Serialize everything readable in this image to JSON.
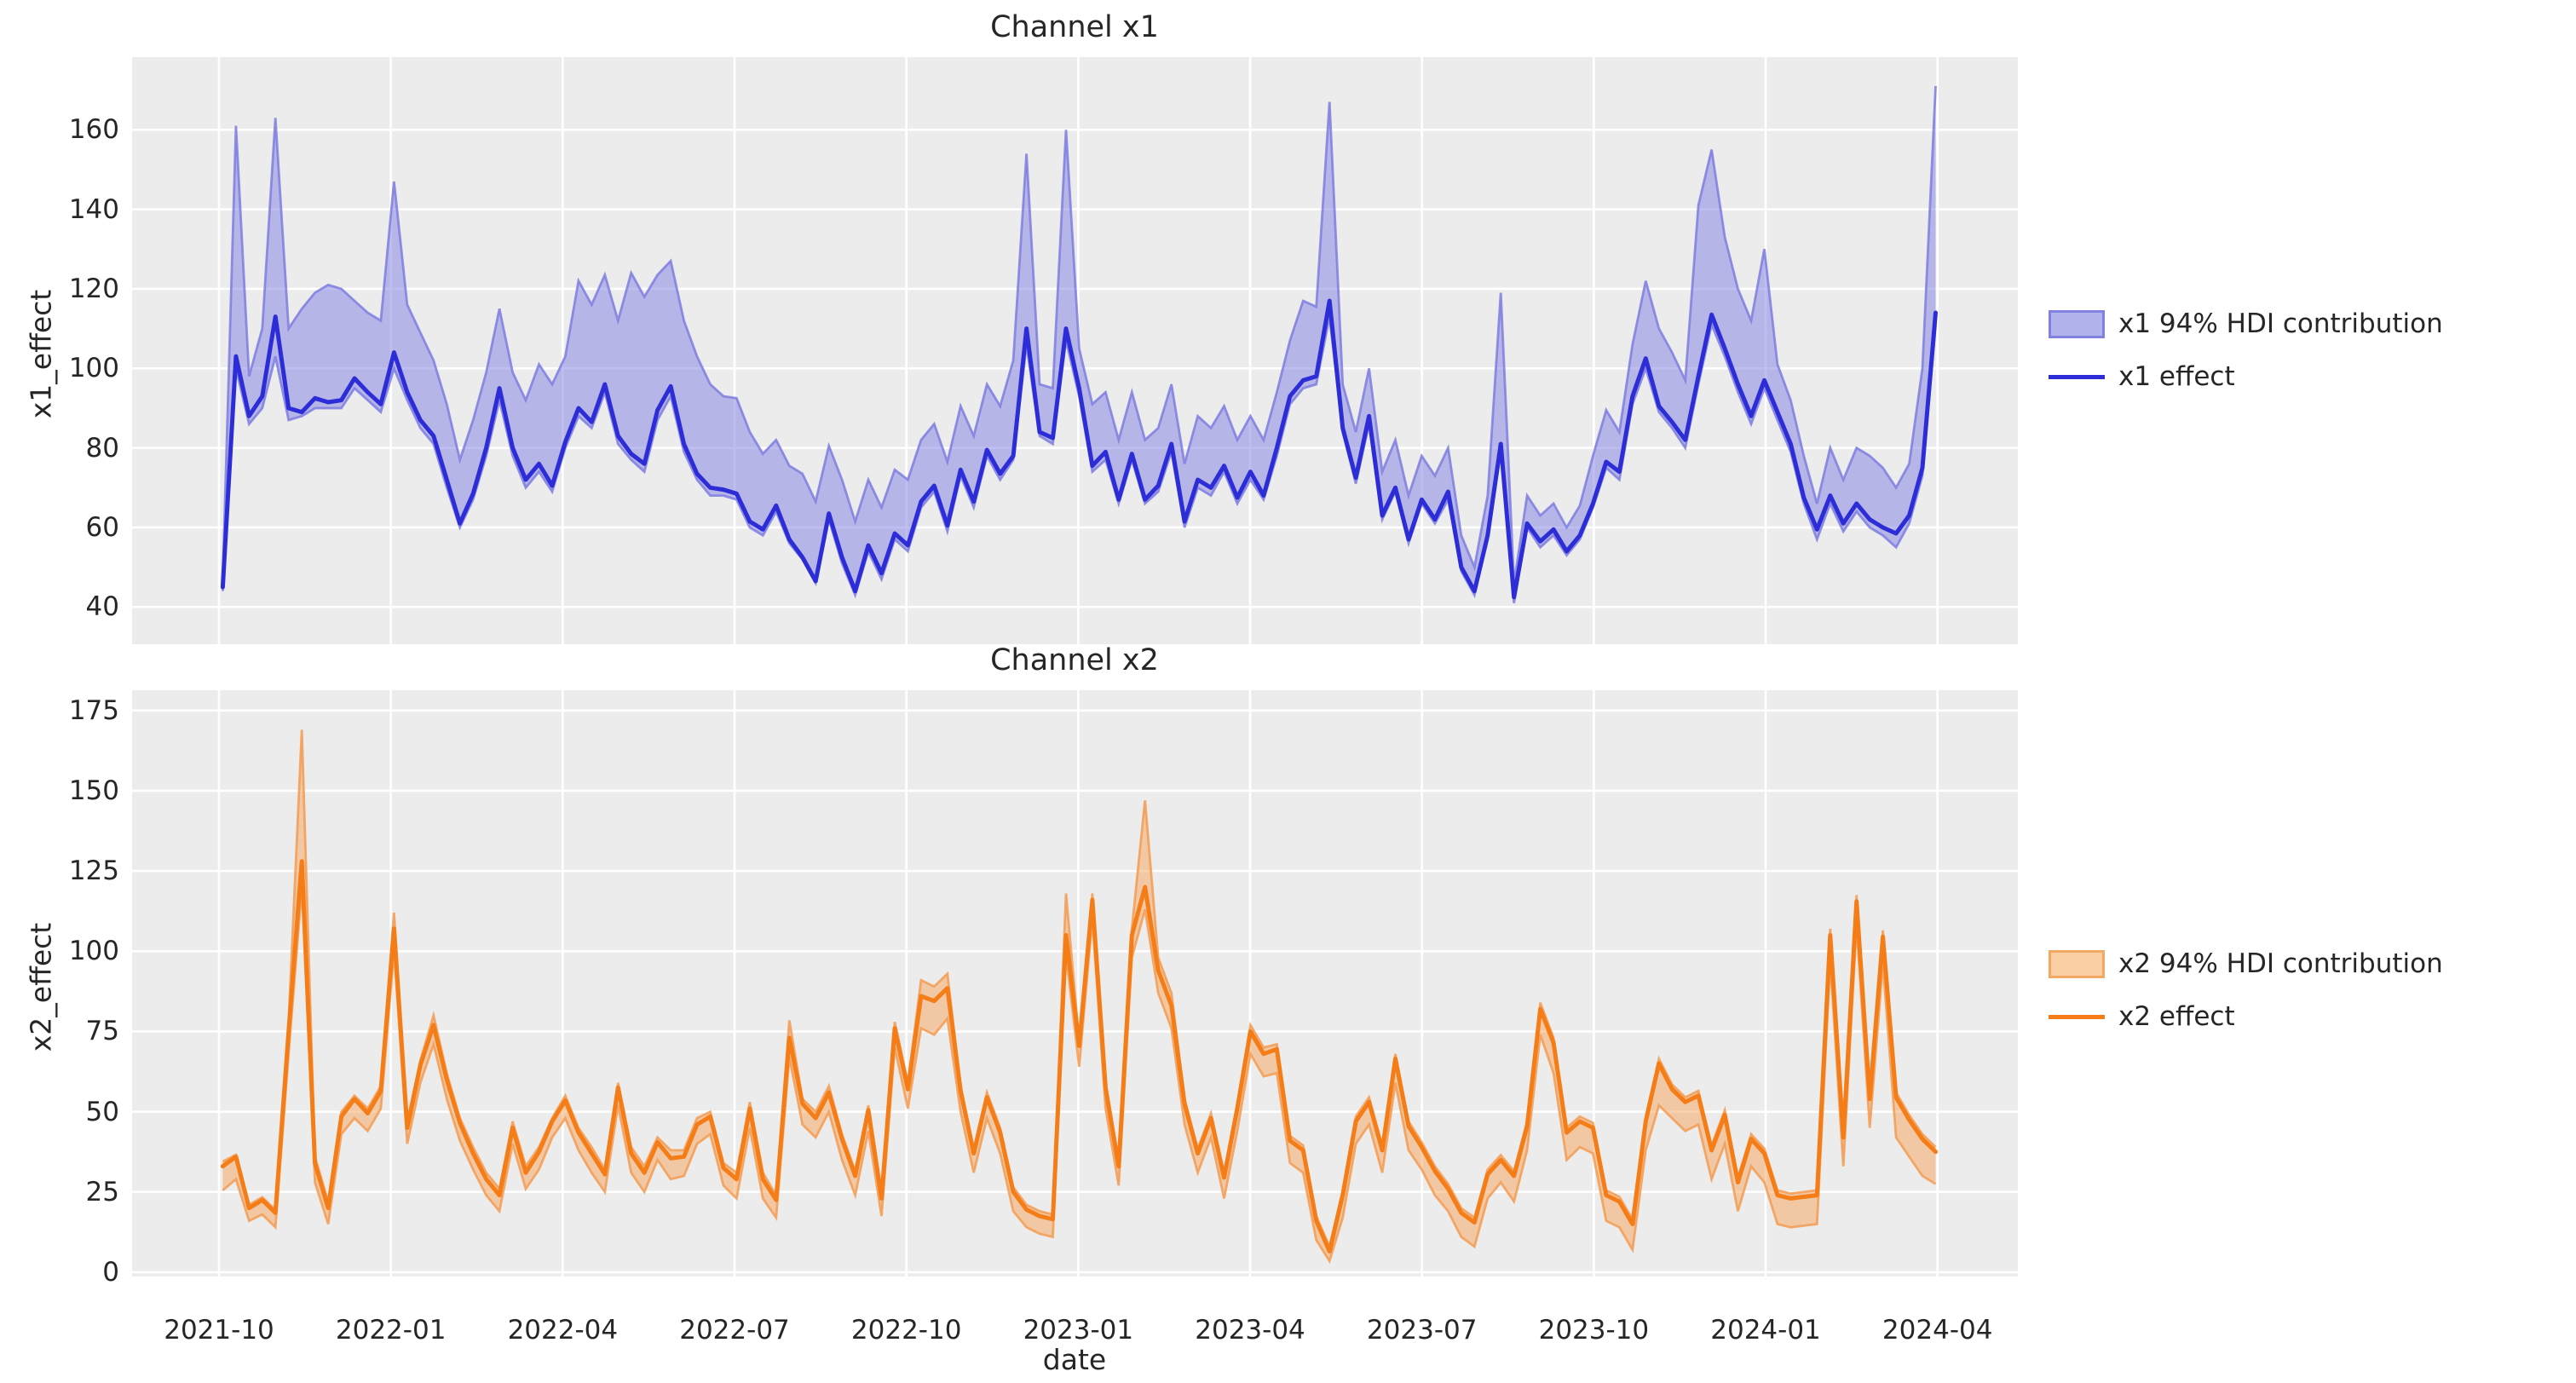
{
  "xlabel": "date",
  "xticks": [
    "2021-10",
    "2022-01",
    "2022-04",
    "2022-07",
    "2022-10",
    "2023-01",
    "2023-04",
    "2023-07",
    "2023-10",
    "2024-01",
    "2024-04"
  ],
  "colors": {
    "figure_background": "#ffffff",
    "plot_background": "#ececec",
    "grid": "#ffffff",
    "text": "#262626",
    "x1_line": "#2d2dd8",
    "x1_band_fill": "#7d7de2",
    "x1_band_edge": "#7e7ee0",
    "x2_line": "#f57d18",
    "x2_band_fill": "#f7a45c",
    "x2_band_edge": "#f39c54"
  },
  "chart_data": [
    {
      "type": "line",
      "title": "Channel x1",
      "xlabel": "date",
      "ylabel": "x1_effect",
      "x_start_date": "2021-10-03",
      "x_freq_days": 7,
      "n_points": 131,
      "yticks": [
        40,
        60,
        80,
        100,
        120,
        140,
        160
      ],
      "ylim": [
        30.6,
        178.3
      ],
      "grid": true,
      "legend_position": "right",
      "series_labels": {
        "band": "x1 94% HDI contribution",
        "line": "x1 effect"
      },
      "series": [
        {
          "name": "x1 effect",
          "role": "mean",
          "values": [
            45,
            103,
            88,
            93,
            113,
            90,
            89,
            92.5,
            91.5,
            92,
            97.5,
            94,
            91,
            104,
            94,
            87,
            83,
            72,
            61,
            68.5,
            80,
            95,
            80,
            72,
            76,
            70.5,
            81.5,
            90,
            86.5,
            96,
            83,
            78.5,
            76,
            89.5,
            95.5,
            81,
            73.5,
            70,
            69.5,
            68.5,
            61.5,
            59.5,
            65.5,
            57,
            52.5,
            46.5,
            63.5,
            52.5,
            44,
            55.5,
            48.5,
            58.5,
            55.5,
            66.5,
            70.5,
            60.5,
            74.5,
            66.5,
            79.5,
            73.5,
            78,
            110,
            84,
            82.5,
            110,
            95,
            75.5,
            79,
            67,
            78.5,
            67,
            70.5,
            81,
            61.5,
            72,
            70,
            75.5,
            67.5,
            74,
            68,
            80,
            93,
            97,
            98,
            117,
            85,
            72.5,
            88,
            63,
            70,
            57,
            67,
            62,
            69,
            50,
            44,
            58,
            81,
            42.5,
            61,
            56.5,
            59.5,
            54,
            58,
            66,
            76.5,
            74,
            93,
            102.5,
            90.5,
            86.5,
            82,
            98,
            113.5,
            105,
            96,
            88,
            97,
            89,
            81,
            67.5,
            59.5,
            68,
            61,
            66,
            62,
            60,
            58.5,
            63,
            75,
            114
          ]
        },
        {
          "name": "x1 94% HDI contribution",
          "role": "band_lower",
          "values": [
            44,
            100,
            86,
            90,
            103,
            87,
            88,
            90,
            90,
            90,
            95,
            92,
            89,
            100,
            92,
            85,
            81,
            70,
            60,
            67,
            78,
            92,
            78,
            70,
            74,
            69,
            80,
            88,
            85,
            94,
            81,
            77,
            74,
            87,
            93,
            79,
            72,
            68,
            68,
            67,
            60,
            58,
            64,
            56,
            52,
            46,
            62,
            51,
            43,
            54,
            47,
            57,
            54,
            65,
            69,
            59,
            73,
            65,
            78,
            72,
            77,
            106,
            83,
            81,
            107,
            93,
            74,
            77,
            66,
            77,
            66,
            69,
            79,
            60,
            70,
            68,
            74,
            66,
            72,
            67,
            78,
            91,
            95,
            96,
            113,
            84,
            71,
            86,
            62,
            69,
            56,
            66,
            61,
            67,
            49,
            43,
            57,
            79,
            41,
            60,
            55,
            58,
            53,
            57,
            65,
            75,
            72,
            91,
            100,
            89,
            85,
            80,
            96,
            111,
            103,
            94,
            86,
            95,
            87,
            79,
            66,
            57,
            66,
            59,
            64,
            60,
            58,
            55,
            61,
            73,
            111
          ]
        },
        {
          "name": "x1 94% HDI contribution",
          "role": "band_upper",
          "values": [
            47,
            161,
            98,
            110,
            163,
            110,
            115,
            119,
            121,
            120,
            117,
            114,
            112,
            147,
            116,
            109,
            102,
            91,
            77,
            87,
            99,
            115,
            99,
            92,
            101,
            96,
            103,
            122,
            116,
            123.5,
            112,
            124,
            118,
            123.5,
            127,
            112,
            103,
            96,
            93,
            92.5,
            84,
            78.5,
            82,
            75.5,
            73.5,
            66.5,
            80.5,
            72,
            61.5,
            72,
            65,
            74.5,
            72,
            82,
            86,
            76.5,
            90.5,
            83,
            96,
            90.5,
            102,
            154,
            96,
            95,
            160,
            105,
            91,
            94,
            82,
            94,
            82,
            85,
            96,
            76,
            88,
            85,
            90.5,
            82,
            88,
            82,
            94,
            107,
            117,
            115.5,
            167,
            96,
            84,
            100,
            74,
            82,
            68,
            78,
            73,
            80,
            58,
            50,
            68,
            119,
            46,
            68,
            63,
            66,
            60,
            65.5,
            78,
            89.5,
            84,
            106,
            122,
            110,
            104,
            97,
            141,
            155,
            133,
            120,
            112,
            130,
            101,
            92,
            78,
            66,
            80,
            72,
            80,
            78,
            75,
            70,
            76,
            100,
            171
          ]
        }
      ]
    },
    {
      "type": "line",
      "title": "Channel x2",
      "xlabel": "date",
      "ylabel": "x2_effect",
      "x_start_date": "2021-10-03",
      "x_freq_days": 7,
      "n_points": 131,
      "yticks": [
        0,
        25,
        50,
        75,
        100,
        125,
        150,
        175
      ],
      "ylim": [
        -1.3,
        181.3
      ],
      "grid": true,
      "legend_position": "right",
      "series_labels": {
        "band": "x2 94% HDI contribution",
        "line": "x2 effect"
      },
      "series": [
        {
          "name": "x2 effect",
          "role": "mean",
          "values": [
            33,
            36,
            20,
            22.5,
            18.5,
            75,
            128,
            34,
            20,
            48.5,
            54,
            49.5,
            56.5,
            107,
            45,
            64.5,
            77,
            60,
            46.5,
            37,
            29,
            24,
            45,
            31,
            37.5,
            47,
            53.5,
            43.5,
            37,
            30.5,
            57.5,
            37,
            31,
            40.5,
            35.5,
            36,
            46,
            48.5,
            32.5,
            29,
            51,
            29,
            22.5,
            73,
            52.5,
            48,
            56,
            41.5,
            30,
            50.5,
            23,
            76,
            57,
            86,
            84.5,
            88.5,
            56.5,
            37,
            54.5,
            43.5,
            25,
            19.5,
            17.5,
            16.5,
            105,
            70.5,
            116,
            57.5,
            33,
            105,
            120,
            94,
            83,
            52.5,
            37,
            48,
            29.5,
            51,
            75,
            68,
            69.5,
            41,
            38,
            16,
            6.5,
            24,
            47,
            53,
            38,
            66.5,
            45.5,
            39,
            31.5,
            26,
            18.5,
            15.5,
            30.5,
            35,
            30,
            45.5,
            82,
            71.5,
            43.5,
            47,
            45,
            24,
            22,
            15,
            47,
            65,
            57,
            53,
            55,
            38,
            49,
            28,
            41.5,
            37,
            24,
            23,
            23.5,
            24,
            105,
            42,
            115.5,
            54,
            104.5,
            54.5,
            47.5,
            41.5,
            37.5
          ]
        },
        {
          "name": "x2 94% HDI contribution",
          "role": "band_lower",
          "values": [
            25.5,
            29,
            16,
            18,
            14,
            68,
            120,
            28,
            15,
            43,
            48,
            44,
            51,
            100,
            40,
            59,
            71,
            54,
            41,
            32,
            24,
            19,
            40,
            26,
            32,
            42,
            48,
            38,
            31,
            25,
            52,
            31,
            25,
            35,
            29,
            30,
            40,
            43,
            27,
            23,
            45,
            23,
            17,
            67,
            46,
            42,
            50,
            35,
            24,
            44,
            17.5,
            70,
            51,
            76,
            74,
            79,
            50,
            31,
            48,
            37,
            19,
            14,
            12,
            11,
            99,
            64,
            110,
            51,
            27,
            98,
            113,
            87,
            76,
            46,
            31,
            42,
            23,
            44,
            68,
            61,
            62,
            34,
            31,
            10,
            3.5,
            17,
            40,
            46,
            31,
            59,
            38,
            32,
            24,
            19,
            11,
            8,
            23,
            28,
            22,
            38,
            74,
            62,
            35,
            39,
            37,
            16,
            14,
            7,
            38,
            52,
            48,
            44,
            46,
            29,
            40,
            19,
            33,
            28,
            15,
            14,
            14.5,
            15,
            97,
            33,
            108,
            45,
            96,
            42,
            36,
            30,
            27.5
          ]
        },
        {
          "name": "x2 94% HDI contribution",
          "role": "band_upper",
          "values": [
            34.5,
            36.6,
            21,
            23.4,
            19.4,
            78,
            169,
            36,
            22,
            50,
            55,
            51,
            58,
            112,
            47,
            66,
            80,
            62,
            48,
            39,
            31,
            26,
            47,
            33,
            39,
            48,
            55,
            45,
            39,
            32,
            59,
            39,
            33,
            42,
            38,
            38,
            48,
            50,
            34,
            31,
            53,
            31,
            24,
            78.5,
            54,
            50,
            58,
            43,
            31.5,
            52,
            24.5,
            78,
            59,
            91,
            89,
            93,
            58,
            38.5,
            56,
            45,
            26.5,
            21,
            19,
            18,
            118,
            72,
            118,
            59,
            34.5,
            107,
            147,
            98,
            87,
            54,
            38.5,
            49.5,
            31,
            52.5,
            77,
            70,
            71,
            42.5,
            39.5,
            17.5,
            8,
            25.5,
            48.5,
            54.5,
            39.5,
            68,
            47,
            40.5,
            33,
            27.5,
            20,
            17,
            32,
            36.5,
            31.5,
            47,
            84,
            73,
            45,
            48.5,
            46.5,
            25.5,
            23.5,
            16.5,
            48.5,
            66.5,
            58.5,
            54.5,
            56.5,
            39.5,
            50.5,
            29.5,
            43,
            38.5,
            25.5,
            24.5,
            25,
            25.5,
            107,
            43.5,
            117.5,
            55.5,
            106.5,
            56,
            49,
            43,
            39
          ]
        }
      ]
    }
  ]
}
